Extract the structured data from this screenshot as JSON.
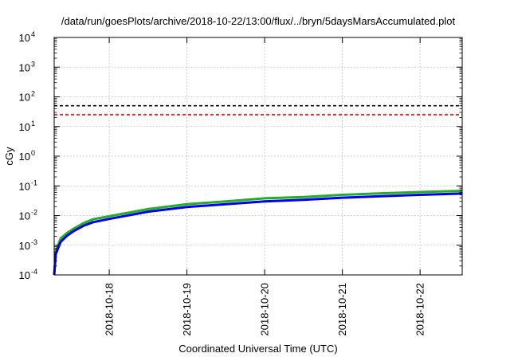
{
  "chart_data": {
    "type": "line",
    "title": "/data/run/goesPlots/archive/2018-10-22/13:00/flux/../bryn/5daysMarsAccumulated.plot",
    "xlabel": "Coordinated Universal Time (UTC)",
    "ylabel": "cGy",
    "x_tick_labels": [
      "2018-10-18",
      "2018-10-19",
      "2018-10-20",
      "2018-10-21",
      "2018-10-22"
    ],
    "y_tick_labels": [
      {
        "base": "10",
        "exp": "-4"
      },
      {
        "base": "10",
        "exp": "-3"
      },
      {
        "base": "10",
        "exp": "-2"
      },
      {
        "base": "10",
        "exp": "-1"
      },
      {
        "base": "10",
        "exp": "0"
      },
      {
        "base": "10",
        "exp": "1"
      },
      {
        "base": "10",
        "exp": "2"
      },
      {
        "base": "10",
        "exp": "3"
      },
      {
        "base": "10",
        "exp": "4"
      }
    ],
    "y_scale": "log",
    "ylim": [
      0.0001,
      10000
    ],
    "xlim": [
      "2018-10-17 07:00",
      "2018-10-22 13:00"
    ],
    "grid": true,
    "reference_lines": [
      {
        "value": 50,
        "color": "#000000",
        "style": "dashed"
      },
      {
        "value": 25,
        "color": "#ff0000",
        "style": "dashed"
      }
    ],
    "series": [
      {
        "color": "#22b022",
        "x": [
          "2018-10-17 07:00",
          "2018-10-17 07:30",
          "2018-10-17 08:00",
          "2018-10-17 09:00",
          "2018-10-17 11:00",
          "2018-10-17 13:00",
          "2018-10-17 16:00",
          "2018-10-17 19:00",
          "2018-10-18 00:00",
          "2018-10-18 06:00",
          "2018-10-18 12:00",
          "2018-10-19 00:00",
          "2018-10-19 12:00",
          "2018-10-20 00:00",
          "2018-10-20 12:00",
          "2018-10-21 00:00",
          "2018-10-21 12:00",
          "2018-10-22 00:00",
          "2018-10-22 13:00"
        ],
        "values": [
          0.0001,
          0.0006,
          0.0009,
          0.0017,
          0.0026,
          0.0036,
          0.0055,
          0.0075,
          0.0095,
          0.0125,
          0.0165,
          0.024,
          0.03,
          0.038,
          0.042,
          0.05,
          0.056,
          0.062,
          0.068
        ]
      },
      {
        "color": "#0000ee",
        "x": [
          "2018-10-17 07:00",
          "2018-10-17 07:30",
          "2018-10-17 08:00",
          "2018-10-17 09:00",
          "2018-10-17 11:00",
          "2018-10-17 13:00",
          "2018-10-17 16:00",
          "2018-10-17 19:00",
          "2018-10-18 00:00",
          "2018-10-18 06:00",
          "2018-10-18 12:00",
          "2018-10-19 00:00",
          "2018-10-19 12:00",
          "2018-10-20 00:00",
          "2018-10-20 12:00",
          "2018-10-21 00:00",
          "2018-10-21 12:00",
          "2018-10-22 00:00",
          "2018-10-22 13:00"
        ],
        "values": [
          0.0001,
          0.0005,
          0.0007,
          0.0013,
          0.0021,
          0.003,
          0.0045,
          0.006,
          0.0077,
          0.0102,
          0.0135,
          0.0195,
          0.024,
          0.03,
          0.034,
          0.04,
          0.045,
          0.05,
          0.055
        ]
      }
    ]
  }
}
